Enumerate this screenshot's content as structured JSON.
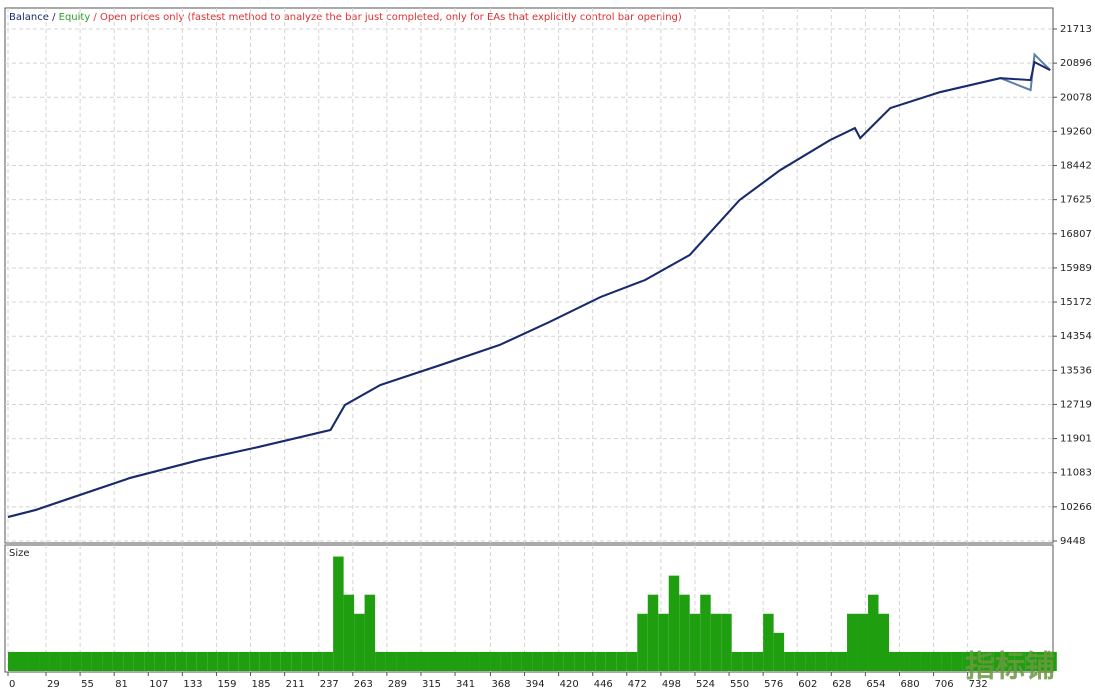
{
  "chart_data": {
    "type": "line",
    "title_parts": [
      {
        "text": "Balance",
        "color": "#1a2a6c"
      },
      {
        "text": " / ",
        "color": "#1a2a6c"
      },
      {
        "text": "Equity",
        "color": "#2e9e2e"
      },
      {
        "text": " / Open prices only (fastest method to analyze the bar just completed, only for EAs that explicitly control bar opening)",
        "color": "#e03030"
      }
    ],
    "x": [
      0,
      21,
      48,
      93,
      146,
      191,
      246,
      257,
      284,
      330,
      375,
      413,
      452,
      486,
      520,
      558,
      589,
      627,
      646,
      650,
      673,
      711,
      757,
      780,
      783,
      795
    ],
    "series": [
      {
        "name": "Equity",
        "color": "#5b7fa6",
        "values": [
          10023,
          10190,
          10478,
          10957,
          11388,
          11700,
          12107,
          12706,
          13185,
          13663,
          14143,
          14694,
          15292,
          15700,
          16298,
          17615,
          18334,
          19052,
          19339,
          19100,
          19819,
          20202,
          20537,
          20250,
          21100,
          20729
        ]
      },
      {
        "name": "Balance",
        "color": "#1a2a6c",
        "values": [
          10023,
          10190,
          10478,
          10957,
          11388,
          11700,
          12107,
          12706,
          13185,
          13663,
          14143,
          14694,
          15292,
          15700,
          16298,
          17615,
          18334,
          19052,
          19339,
          19100,
          19819,
          20202,
          20537,
          20489,
          20920,
          20729
        ]
      }
    ],
    "xlim": [
      0,
      796
    ],
    "ylim": [
      9448,
      21713
    ],
    "yticks": [
      21713,
      20896,
      20078,
      19260,
      18442,
      17625,
      16807,
      15989,
      15172,
      14354,
      13536,
      12719,
      11901,
      11083,
      10266,
      9448
    ],
    "xticks": [
      0,
      29,
      55,
      81,
      107,
      133,
      159,
      185,
      211,
      237,
      263,
      289,
      315,
      341,
      368,
      394,
      420,
      446,
      472,
      498,
      524,
      550,
      576,
      602,
      628,
      654,
      680,
      706,
      732
    ],
    "grid": true,
    "size_panel": {
      "type": "bar",
      "title": "Size",
      "color": "#1f9e10",
      "ylim": [
        0,
        6.5
      ],
      "x": [
        0,
        8,
        16,
        24,
        32,
        40,
        48,
        56,
        64,
        72,
        80,
        88,
        96,
        104,
        112,
        120,
        128,
        136,
        144,
        152,
        160,
        168,
        176,
        184,
        192,
        200,
        208,
        216,
        224,
        232,
        240,
        248,
        256,
        264,
        272,
        280,
        288,
        296,
        304,
        312,
        320,
        328,
        336,
        344,
        352,
        360,
        368,
        376,
        384,
        392,
        400,
        408,
        416,
        424,
        432,
        440,
        448,
        456,
        464,
        472,
        480,
        488,
        496,
        504,
        512,
        520,
        528,
        536,
        544,
        552,
        560,
        568,
        576,
        584,
        592,
        600,
        608,
        616,
        624,
        632,
        640,
        648,
        656,
        664,
        672,
        680,
        688,
        696,
        704,
        712,
        720,
        728,
        736,
        744,
        752,
        760,
        768,
        776,
        784,
        792
      ],
      "values": [
        1,
        1,
        1,
        1,
        1,
        1,
        1,
        1,
        1,
        1,
        1,
        1,
        1,
        1,
        1,
        1,
        1,
        1,
        1,
        1,
        1,
        1,
        1,
        1,
        1,
        1,
        1,
        1,
        1,
        1,
        1,
        6,
        4,
        3,
        4,
        1,
        1,
        1,
        1,
        1,
        1,
        1,
        1,
        1,
        1,
        1,
        1,
        1,
        1,
        1,
        1,
        1,
        1,
        1,
        1,
        1,
        1,
        1,
        1,
        1,
        3,
        4,
        3,
        5,
        4,
        3,
        4,
        3,
        3,
        1,
        1,
        1,
        3,
        2,
        1,
        1,
        1,
        1,
        1,
        1,
        3,
        3,
        4,
        3,
        1,
        1,
        1,
        1,
        1,
        1,
        1,
        1,
        1,
        1,
        1,
        1,
        1,
        1,
        1,
        1
      ]
    },
    "watermark": "指标铺"
  }
}
